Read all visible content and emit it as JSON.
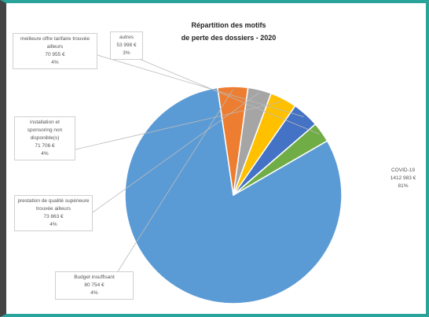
{
  "chart_data": {
    "type": "pie",
    "title": [
      "Répartition des motifs",
      "de perte des dossiers - 2020"
    ],
    "slices": [
      {
        "label": "COVID-19",
        "amount": "1412 983 €",
        "percent": "81%",
        "value": 81,
        "color": "#5b9bd5"
      },
      {
        "label": "Budget insuffisant",
        "amount": "80 754 €",
        "percent": "4%",
        "value": 4.5,
        "color": "#ed7d31"
      },
      {
        "label": "prestation de qualité supérieure trouvée ailleurs",
        "amount": "73 863 €",
        "percent": "4%",
        "value": 3.5,
        "color": "#a5a5a5"
      },
      {
        "label": "installation et sponsoring non disponible(s)",
        "amount": "71 706 €",
        "percent": "4%",
        "value": 4,
        "color": "#ffc000"
      },
      {
        "label": "meilleure offre tarifaire trouvée ailleurs",
        "amount": "70 955 €",
        "percent": "4%",
        "value": 4,
        "color": "#4472c4"
      },
      {
        "label": "autres",
        "amount": "53 998 €",
        "percent": "3%",
        "value": 3,
        "color": "#70ad47"
      }
    ]
  }
}
